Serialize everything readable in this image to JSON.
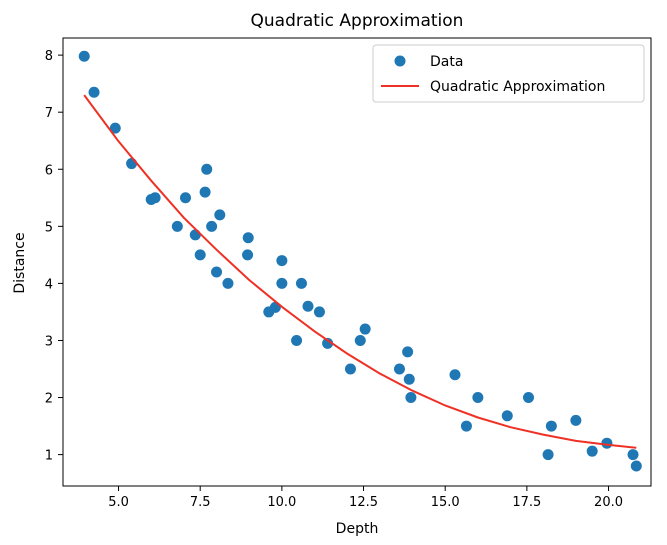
{
  "chart_data": {
    "type": "scatter",
    "title": "Quadratic Approximation",
    "xlabel": "Depth",
    "ylabel": "Distance",
    "xlim": [
      3.3,
      21.3
    ],
    "ylim": [
      0.45,
      8.3
    ],
    "xticks": [
      5.0,
      7.5,
      10.0,
      12.5,
      15.0,
      17.5,
      20.0
    ],
    "xtick_labels": [
      "5.0",
      "7.5",
      "10.0",
      "12.5",
      "15.0",
      "17.5",
      "20.0"
    ],
    "yticks": [
      1,
      2,
      3,
      4,
      5,
      6,
      7,
      8
    ],
    "ytick_labels": [
      "1",
      "2",
      "3",
      "4",
      "5",
      "6",
      "7",
      "8"
    ],
    "legend_position": "top-right",
    "colors": {
      "data": "#1f77b4",
      "fit": "#ee3124"
    },
    "series": [
      {
        "name": "Data",
        "type": "scatter",
        "points": [
          [
            3.95,
            7.98
          ],
          [
            4.25,
            7.35
          ],
          [
            4.9,
            6.72
          ],
          [
            5.4,
            6.1
          ],
          [
            6.0,
            5.47
          ],
          [
            6.12,
            5.5
          ],
          [
            6.8,
            5.0
          ],
          [
            7.05,
            5.5
          ],
          [
            7.35,
            4.85
          ],
          [
            7.5,
            4.5
          ],
          [
            7.65,
            5.6
          ],
          [
            7.7,
            6.0
          ],
          [
            7.85,
            5.0
          ],
          [
            8.0,
            4.2
          ],
          [
            8.1,
            5.2
          ],
          [
            8.35,
            4.0
          ],
          [
            8.95,
            4.5
          ],
          [
            8.97,
            4.8
          ],
          [
            9.6,
            3.5
          ],
          [
            9.8,
            3.58
          ],
          [
            10.0,
            4.0
          ],
          [
            10.0,
            4.4
          ],
          [
            10.45,
            3.0
          ],
          [
            10.6,
            4.0
          ],
          [
            10.8,
            3.6
          ],
          [
            11.15,
            3.5
          ],
          [
            11.4,
            2.95
          ],
          [
            12.1,
            2.5
          ],
          [
            12.4,
            3.0
          ],
          [
            12.55,
            3.2
          ],
          [
            13.6,
            2.5
          ],
          [
            13.85,
            2.8
          ],
          [
            13.9,
            2.32
          ],
          [
            13.95,
            2.0
          ],
          [
            15.3,
            2.4
          ],
          [
            15.65,
            1.5
          ],
          [
            16.0,
            2.0
          ],
          [
            16.9,
            1.68
          ],
          [
            17.55,
            2.0
          ],
          [
            18.15,
            1.0
          ],
          [
            18.25,
            1.5
          ],
          [
            19.0,
            1.6
          ],
          [
            19.5,
            1.06
          ],
          [
            19.95,
            1.2
          ],
          [
            20.75,
            1.0
          ],
          [
            20.85,
            0.8
          ]
        ]
      },
      {
        "name": "Quadratic Approximation",
        "type": "line",
        "x": [
          3.95,
          5,
          6,
          7,
          8,
          9,
          10,
          11,
          12,
          13,
          14,
          15,
          16,
          17,
          18,
          19,
          20,
          20.85
        ],
        "y": [
          7.3,
          6.49,
          5.8,
          5.15,
          4.59,
          4.06,
          3.59,
          3.16,
          2.77,
          2.42,
          2.12,
          1.86,
          1.65,
          1.48,
          1.35,
          1.24,
          1.17,
          1.12
        ]
      }
    ]
  }
}
